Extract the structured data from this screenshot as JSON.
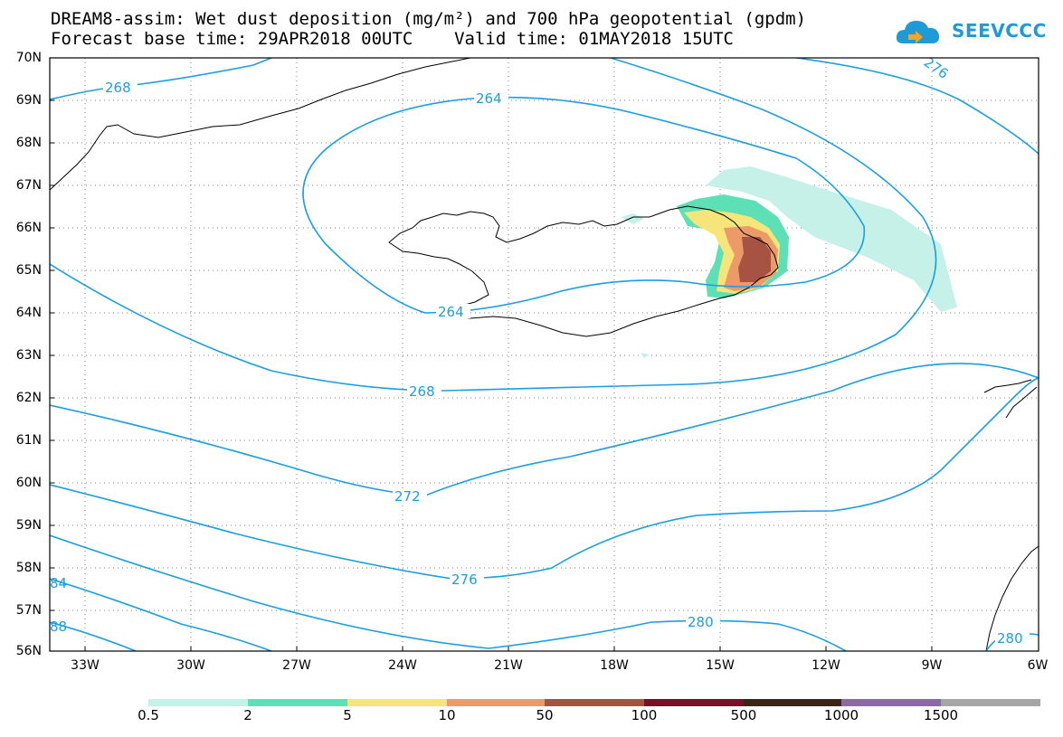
{
  "title_line1": "DREAM8-assim: Wet dust deposition (mg/m²) and 700 hPa geopotential (gpdm)",
  "title_line2": "Forecast base time: 29APR2018 00UTC    Valid time: 01MAY2018 15UTC",
  "logo_text": "SEEVCCC",
  "lat_labels": [
    "70N",
    "69N",
    "68N",
    "67N",
    "66N",
    "65N",
    "64N",
    "63N",
    "62N",
    "61N",
    "60N",
    "59N",
    "58N",
    "57N",
    "56N"
  ],
  "lon_labels": [
    "33W",
    "30W",
    "27W",
    "24W",
    "21W",
    "18W",
    "15W",
    "12W",
    "9W",
    "6W"
  ],
  "contour_labels": [
    "268",
    "264",
    "264",
    "276",
    "268",
    "272",
    "276",
    "280",
    "280",
    "84",
    "88"
  ],
  "colorbar": {
    "ticks": [
      "0.5",
      "2",
      "5",
      "10",
      "50",
      "100",
      "500",
      "1000",
      "1500"
    ],
    "colors": [
      "#c6f1e8",
      "#5ee0b6",
      "#f5e57a",
      "#ec9a6a",
      "#a75344",
      "#7a0f2a",
      "#3b2517",
      "#8c6ca0",
      "#a6a6a6"
    ]
  },
  "colors": {
    "contour": "#1a9ee6",
    "coastline": "#000000",
    "grid": "#808080"
  }
}
